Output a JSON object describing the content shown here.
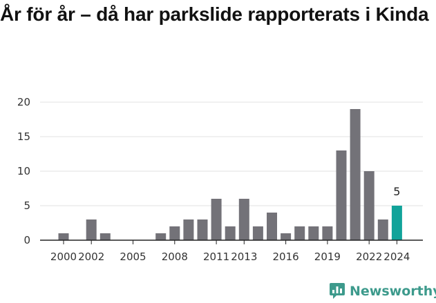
{
  "title": "År för år – då har parkslide rapporterats i Kinda",
  "brand": {
    "name": "Newsworthy"
  },
  "colors": {
    "bar": "#737278",
    "highlight": "#11a39a",
    "grid": "#e2e2e2",
    "axis": "#222222",
    "brand": "#3d9a8c"
  },
  "chart_data": {
    "type": "bar",
    "title": "År för år – då har parkslide rapporterats i Kinda",
    "xlabel": "",
    "ylabel": "",
    "categories": [
      2000,
      2001,
      2002,
      2003,
      2004,
      2005,
      2006,
      2007,
      2008,
      2009,
      2010,
      2011,
      2012,
      2013,
      2014,
      2015,
      2016,
      2017,
      2018,
      2019,
      2020,
      2021,
      2022,
      2023,
      2024
    ],
    "values": [
      1,
      0,
      3,
      1,
      0,
      0,
      0,
      1,
      2,
      3,
      3,
      6,
      2,
      6,
      2,
      4,
      1,
      2,
      2,
      2,
      13,
      19,
      10,
      3,
      5
    ],
    "highlight_category": 2024,
    "highlight_label": "5",
    "x_tick_labels": [
      "2000",
      "2002",
      "2005",
      "2008",
      "2011",
      "2013",
      "2016",
      "2019",
      "2022",
      "2024"
    ],
    "y_ticks": [
      0,
      5,
      10,
      15,
      20
    ],
    "y_tick_labels": [
      "0",
      "5",
      "10",
      "15",
      "20"
    ],
    "ylim": [
      0,
      20
    ],
    "grid": true,
    "legend": "none"
  }
}
